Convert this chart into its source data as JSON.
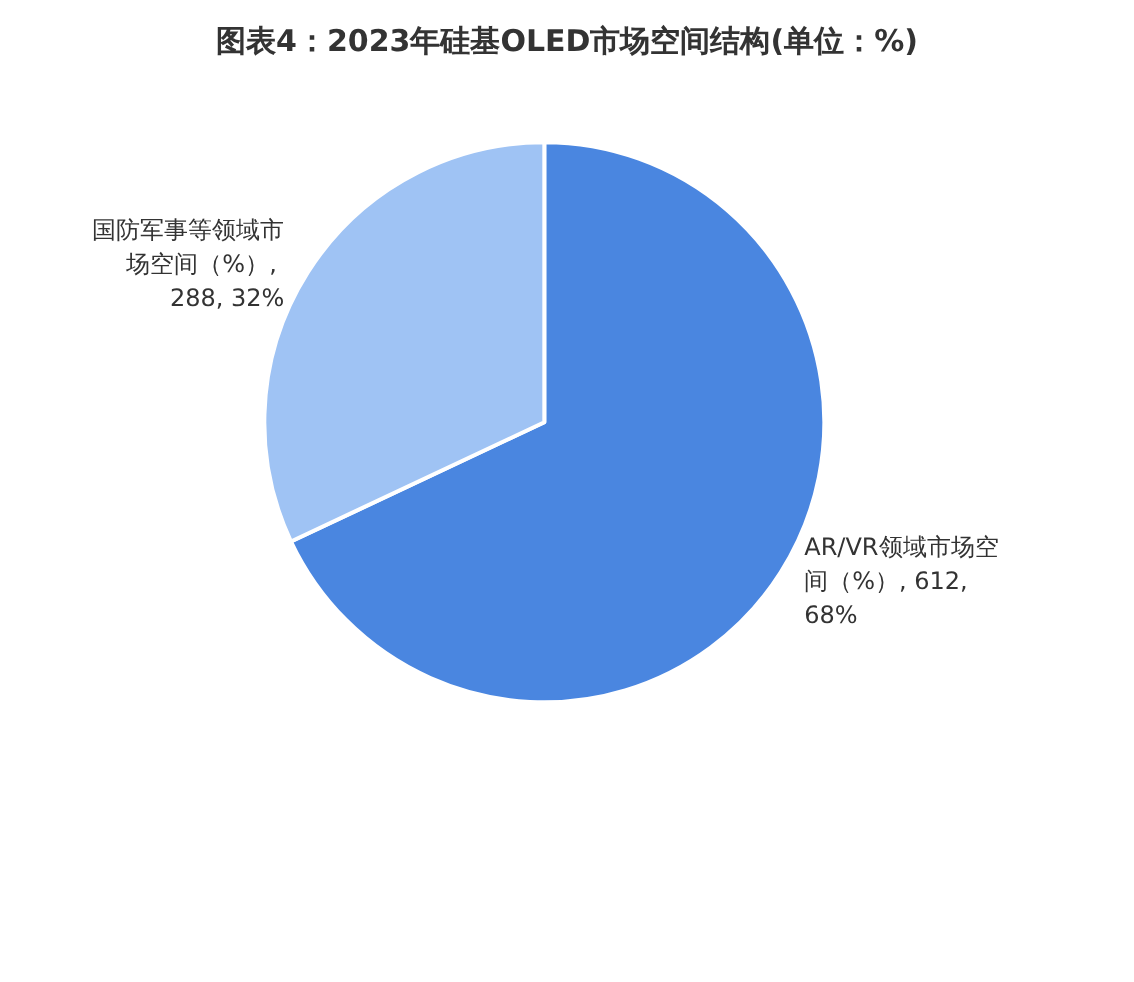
{
  "chart_data": {
    "type": "pie",
    "title": "图表4：2023年硅基OLED市场空间结构(单位：%)",
    "categories": [
      "AR/VR领域市场空间（%）",
      "国防军事等领域市场空间（%）"
    ],
    "values": [
      612,
      288
    ],
    "colors": [
      "#4a86e0",
      "#9fc3f4"
    ],
    "value_labels": [
      ", 612, 68%",
      ", 288, 32%"
    ]
  }
}
